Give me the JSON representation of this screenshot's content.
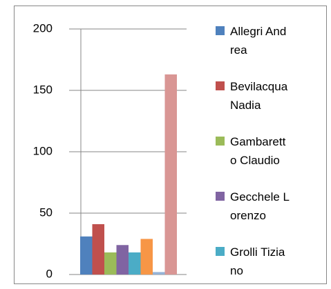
{
  "chart_data": {
    "type": "bar",
    "categories": [
      null
    ],
    "series": [
      {
        "name": "Allegri Andrea",
        "color": "#4f81bd",
        "values": [
          31
        ]
      },
      {
        "name": "Bevilacqua Nadia",
        "color": "#c0504d",
        "values": [
          41
        ]
      },
      {
        "name": "Gambaretto Claudio",
        "color": "#9bbb59",
        "values": [
          18
        ]
      },
      {
        "name": "Gecchele Lorenzo",
        "color": "#8064a2",
        "values": [
          24
        ]
      },
      {
        "name": "Grolli Tiziano",
        "color": "#4bacc6",
        "values": [
          18
        ]
      },
      {
        "color": "#f79646",
        "values": [
          29
        ]
      },
      {
        "color": "#95b3d7",
        "values": [
          2
        ]
      },
      {
        "color": "#d99694",
        "values": [
          163
        ]
      }
    ],
    "ylim": [
      0,
      200
    ],
    "yticks": [
      0,
      50,
      100,
      150,
      200
    ],
    "grid": true
  }
}
